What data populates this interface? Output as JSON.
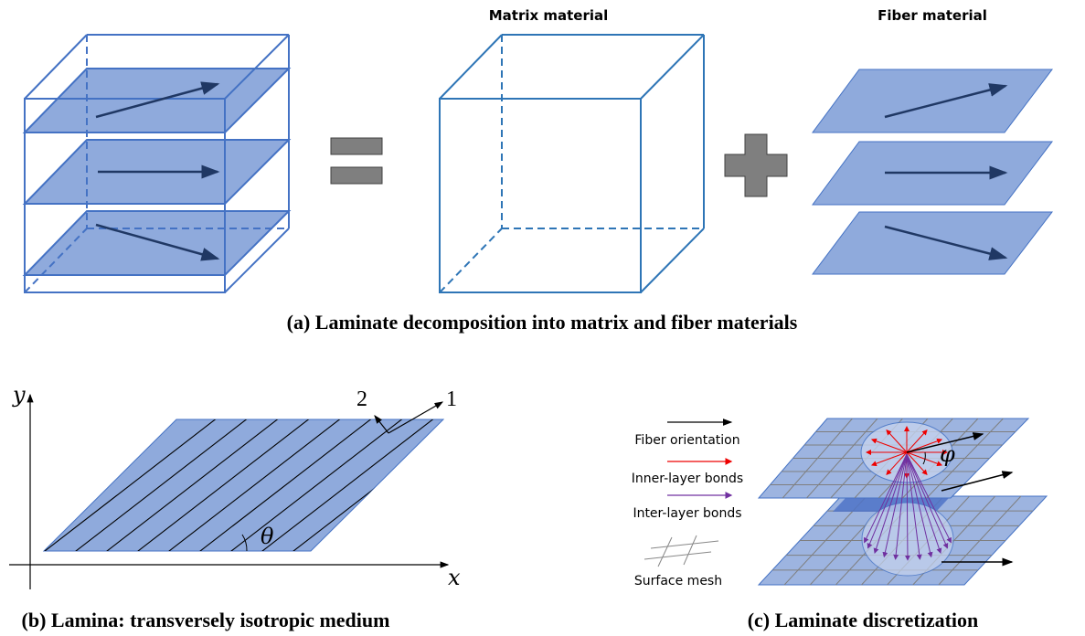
{
  "panel_a": {
    "matrix_label": "Matrix material",
    "fiber_label": "Fiber material",
    "caption": "(a) Laminate decomposition into matrix and fiber materials"
  },
  "panel_b": {
    "y_axis": "y",
    "x_axis": "x",
    "dir_2": "2",
    "dir_1": "1",
    "angle": "θ",
    "caption": "(b) Lamina: transversely isotropic medium"
  },
  "panel_c": {
    "legend": [
      "Fiber orientation",
      "Inner-layer bonds",
      "Inter-layer bonds",
      "Surface mesh"
    ],
    "angle": "φ",
    "caption": "(c) Laminate discretization"
  }
}
